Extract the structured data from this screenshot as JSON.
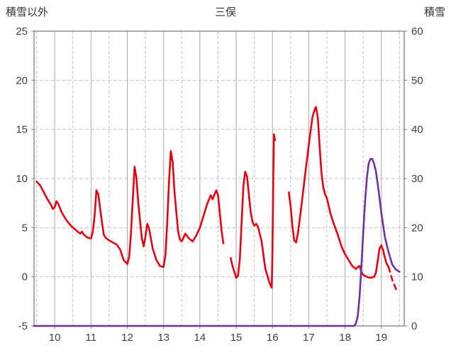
{
  "title": "三俣",
  "left_axis_title": "積雪以外",
  "right_axis_title": "積雪",
  "chart_data": {
    "type": "line",
    "title": "三俣",
    "x_axis": {
      "min": 9.43,
      "max": 19.63,
      "ticks": [
        10,
        11,
        12,
        13,
        14,
        15,
        16,
        17,
        18,
        19
      ]
    },
    "left_axis": {
      "label": "積雪以外",
      "min": -5,
      "max": 25,
      "ticks": [
        -5,
        0,
        5,
        10,
        15,
        20,
        25
      ]
    },
    "right_axis": {
      "label": "積雪",
      "min": 0,
      "max": 60,
      "ticks": [
        0,
        10,
        20,
        30,
        40,
        50,
        60
      ]
    },
    "grid": {
      "vertical_major": "solid",
      "vertical_minor": "dashed",
      "horizontal": "dashed",
      "legend": "none"
    },
    "colors": {
      "red_series": "#e60012",
      "purple_series": "#7030a0",
      "border": "#808080",
      "grid_major": "#a6a6a6",
      "grid_minor": "#c0c0c0"
    },
    "series": [
      {
        "id": "other-than-snow",
        "name": "積雪以外",
        "axis": "left",
        "color": "#e60012",
        "width": 2.6,
        "segments": [
          {
            "points": [
              [
                9.5,
                9.7
              ],
              [
                9.6,
                9.3
              ],
              [
                9.7,
                8.6
              ],
              [
                9.8,
                7.9
              ],
              [
                9.9,
                7.3
              ],
              [
                9.95,
                6.9
              ],
              [
                10.0,
                7.1
              ],
              [
                10.05,
                7.7
              ],
              [
                10.1,
                7.4
              ],
              [
                10.2,
                6.5
              ],
              [
                10.3,
                5.9
              ],
              [
                10.4,
                5.4
              ],
              [
                10.5,
                5.0
              ],
              [
                10.6,
                4.7
              ],
              [
                10.7,
                4.4
              ],
              [
                10.75,
                4.6
              ],
              [
                10.8,
                4.3
              ],
              [
                10.9,
                4.0
              ],
              [
                11.0,
                3.9
              ],
              [
                11.05,
                4.6
              ],
              [
                11.1,
                6.3
              ],
              [
                11.15,
                8.8
              ],
              [
                11.2,
                8.4
              ],
              [
                11.3,
                5.6
              ],
              [
                11.35,
                4.3
              ],
              [
                11.4,
                4.0
              ],
              [
                11.5,
                3.7
              ],
              [
                11.6,
                3.5
              ],
              [
                11.7,
                3.3
              ],
              [
                11.8,
                2.8
              ],
              [
                11.9,
                1.7
              ],
              [
                12.0,
                1.3
              ],
              [
                12.05,
                2.0
              ],
              [
                12.1,
                4.3
              ],
              [
                12.15,
                7.8
              ],
              [
                12.2,
                11.2
              ],
              [
                12.25,
                10.1
              ],
              [
                12.3,
                7.6
              ],
              [
                12.4,
                3.9
              ],
              [
                12.45,
                3.1
              ],
              [
                12.5,
                4.1
              ],
              [
                12.55,
                5.4
              ],
              [
                12.6,
                4.9
              ],
              [
                12.7,
                2.9
              ],
              [
                12.8,
                1.7
              ],
              [
                12.9,
                1.1
              ],
              [
                13.0,
                1.0
              ],
              [
                13.05,
                2.2
              ],
              [
                13.1,
                5.5
              ],
              [
                13.15,
                9.8
              ],
              [
                13.2,
                12.8
              ],
              [
                13.25,
                11.7
              ],
              [
                13.3,
                8.6
              ],
              [
                13.4,
                4.6
              ],
              [
                13.45,
                3.8
              ],
              [
                13.5,
                3.6
              ],
              [
                13.6,
                4.4
              ],
              [
                13.7,
                3.9
              ],
              [
                13.8,
                3.6
              ],
              [
                13.9,
                4.2
              ],
              [
                14.0,
                5.0
              ],
              [
                14.1,
                6.2
              ],
              [
                14.2,
                7.4
              ],
              [
                14.3,
                8.3
              ],
              [
                14.35,
                7.9
              ],
              [
                14.45,
                8.8
              ],
              [
                14.5,
                8.3
              ],
              [
                14.6,
                4.6
              ],
              [
                14.65,
                3.4
              ]
            ]
          },
          {
            "points": [
              [
                14.85,
                1.9
              ],
              [
                14.9,
                1.1
              ],
              [
                15.0,
                -0.1
              ],
              [
                15.05,
                0.1
              ],
              [
                15.1,
                1.8
              ],
              [
                15.15,
                5.5
              ],
              [
                15.2,
                9.3
              ],
              [
                15.25,
                10.7
              ],
              [
                15.3,
                10.2
              ],
              [
                15.4,
                6.6
              ],
              [
                15.45,
                5.6
              ],
              [
                15.5,
                5.2
              ],
              [
                15.55,
                5.4
              ],
              [
                15.6,
                5.1
              ],
              [
                15.7,
                3.6
              ],
              [
                15.8,
                0.9
              ],
              [
                15.9,
                -0.4
              ],
              [
                15.95,
                -0.9
              ],
              [
                15.98,
                -1.1
              ],
              [
                16.0,
                2.5
              ],
              [
                16.02,
                9.5
              ],
              [
                16.04,
                14.5
              ],
              [
                16.07,
                13.9
              ]
            ]
          },
          {
            "points": [
              [
                16.45,
                8.6
              ],
              [
                16.5,
                7.2
              ],
              [
                16.55,
                5.1
              ],
              [
                16.6,
                3.7
              ],
              [
                16.65,
                3.5
              ],
              [
                16.7,
                4.4
              ],
              [
                16.8,
                7.3
              ],
              [
                16.9,
                10.4
              ],
              [
                17.0,
                13.4
              ],
              [
                17.1,
                16.2
              ],
              [
                17.15,
                16.9
              ],
              [
                17.2,
                17.3
              ],
              [
                17.25,
                16.2
              ],
              [
                17.3,
                13.2
              ],
              [
                17.35,
                10.6
              ],
              [
                17.4,
                9.1
              ],
              [
                17.45,
                8.4
              ],
              [
                17.5,
                8.0
              ],
              [
                17.6,
                6.4
              ],
              [
                17.7,
                5.3
              ],
              [
                17.8,
                4.3
              ],
              [
                17.9,
                3.1
              ],
              [
                18.0,
                2.3
              ],
              [
                18.1,
                1.7
              ],
              [
                18.2,
                1.1
              ],
              [
                18.3,
                0.8
              ],
              [
                18.35,
                1.0
              ],
              [
                18.4,
                1.1
              ],
              [
                18.45,
                0.5
              ],
              [
                18.5,
                0.2
              ],
              [
                18.6,
                0.0
              ],
              [
                18.7,
                -0.1
              ],
              [
                18.8,
                0.0
              ],
              [
                18.85,
                0.4
              ],
              [
                18.9,
                1.6
              ],
              [
                18.95,
                2.9
              ],
              [
                19.0,
                3.2
              ],
              [
                19.05,
                2.7
              ],
              [
                19.1,
                1.9
              ],
              [
                19.15,
                1.3
              ],
              [
                19.2,
                1.0
              ]
            ]
          },
          {
            "points": [
              [
                19.2,
                1.0
              ],
              [
                19.3,
                -0.3
              ],
              [
                19.4,
                -1.2
              ],
              [
                19.45,
                -1.6
              ]
            ],
            "dashed": true
          }
        ]
      },
      {
        "id": "snow-depth",
        "name": "積雪",
        "axis": "right",
        "color": "#7030a0",
        "width": 2.6,
        "segments": [
          {
            "points": [
              [
                9.43,
                0
              ],
              [
                18.25,
                0
              ],
              [
                18.3,
                0.5
              ],
              [
                18.35,
                2
              ],
              [
                18.4,
                6
              ],
              [
                18.45,
                12
              ],
              [
                18.5,
                19
              ],
              [
                18.55,
                25
              ],
              [
                18.6,
                30
              ],
              [
                18.65,
                33
              ],
              [
                18.7,
                34
              ],
              [
                18.75,
                34
              ],
              [
                18.8,
                33
              ],
              [
                18.85,
                31.5
              ],
              [
                18.9,
                29
              ],
              [
                18.95,
                26
              ],
              [
                19.0,
                23
              ],
              [
                19.1,
                18
              ],
              [
                19.2,
                15
              ],
              [
                19.3,
                12.5
              ],
              [
                19.4,
                11.5
              ],
              [
                19.5,
                11
              ]
            ]
          }
        ]
      }
    ]
  }
}
